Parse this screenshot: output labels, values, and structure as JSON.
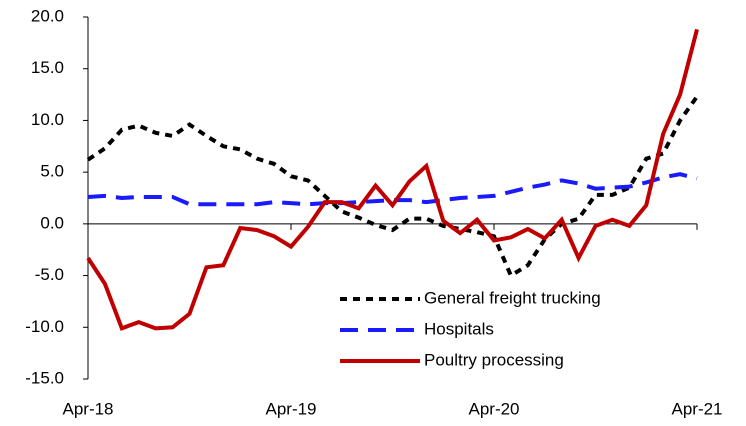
{
  "chart_data": {
    "type": "line",
    "categories": [
      "Apr-18",
      null,
      null,
      null,
      null,
      null,
      null,
      null,
      null,
      null,
      null,
      null,
      "Apr-19",
      null,
      null,
      null,
      null,
      null,
      null,
      null,
      null,
      null,
      null,
      null,
      "Apr-20",
      null,
      null,
      null,
      null,
      null,
      null,
      null,
      null,
      null,
      null,
      null,
      "Apr-21"
    ],
    "series": [
      {
        "name": "General freight trucking",
        "color": "#000000",
        "dash": "7,6",
        "values": [
          6.2,
          7.3,
          9.1,
          9.5,
          8.8,
          8.5,
          9.6,
          8.5,
          7.5,
          7.2,
          6.3,
          5.8,
          4.6,
          4.2,
          2.7,
          1.2,
          0.6,
          -0.1,
          -0.6,
          0.5,
          0.5,
          -0.2,
          -0.5,
          -0.8,
          -1.2,
          -5,
          -4,
          -1.5,
          0,
          0.5,
          2.8,
          2.8,
          3.5,
          6.3,
          6.8,
          10,
          12.3
        ]
      },
      {
        "name": "Hospitals",
        "color": "#1a1aff",
        "dash": "18,10",
        "values": [
          2.6,
          2.7,
          2.5,
          2.6,
          2.6,
          2.6,
          1.9,
          1.9,
          1.9,
          1.9,
          1.9,
          2.1,
          2.0,
          1.9,
          2.0,
          2.0,
          2.1,
          2.2,
          2.3,
          2.3,
          2.1,
          2.3,
          2.5,
          2.6,
          2.7,
          3.1,
          3.5,
          3.8,
          4.2,
          3.9,
          3.4,
          3.5,
          3.6,
          4.0,
          4.5,
          4.8,
          4.4
        ]
      },
      {
        "name": "Poultry processing",
        "color": "#c00000",
        "dash": "none",
        "values": [
          -3.3,
          -5.8,
          -10.1,
          -9.5,
          -10.1,
          -10,
          -8.7,
          -4.2,
          -4,
          -0.4,
          -0.6,
          -1.2,
          -2.2,
          -0.3,
          2.1,
          2.1,
          1.5,
          3.7,
          1.8,
          4.1,
          5.6,
          0.3,
          -0.9,
          0.4,
          -1.6,
          -1.3,
          -0.5,
          -1.4,
          0.4,
          -3.3,
          -0.2,
          0.4,
          -0.2,
          1.8,
          8.7,
          12.5,
          18.8
        ]
      }
    ],
    "ylim": [
      -15,
      20
    ],
    "yticks": [
      {
        "value": -15,
        "label": "-15.0"
      },
      {
        "value": -10,
        "label": "-10.0"
      },
      {
        "value": -5,
        "label": "-5.0"
      },
      {
        "value": 0,
        "label": "0.0"
      },
      {
        "value": 5,
        "label": "5.0"
      },
      {
        "value": 10,
        "label": "10.0"
      },
      {
        "value": 15,
        "label": "15.0"
      },
      {
        "value": 20,
        "label": "20.0"
      }
    ],
    "grid": false,
    "legend": "lower right"
  }
}
